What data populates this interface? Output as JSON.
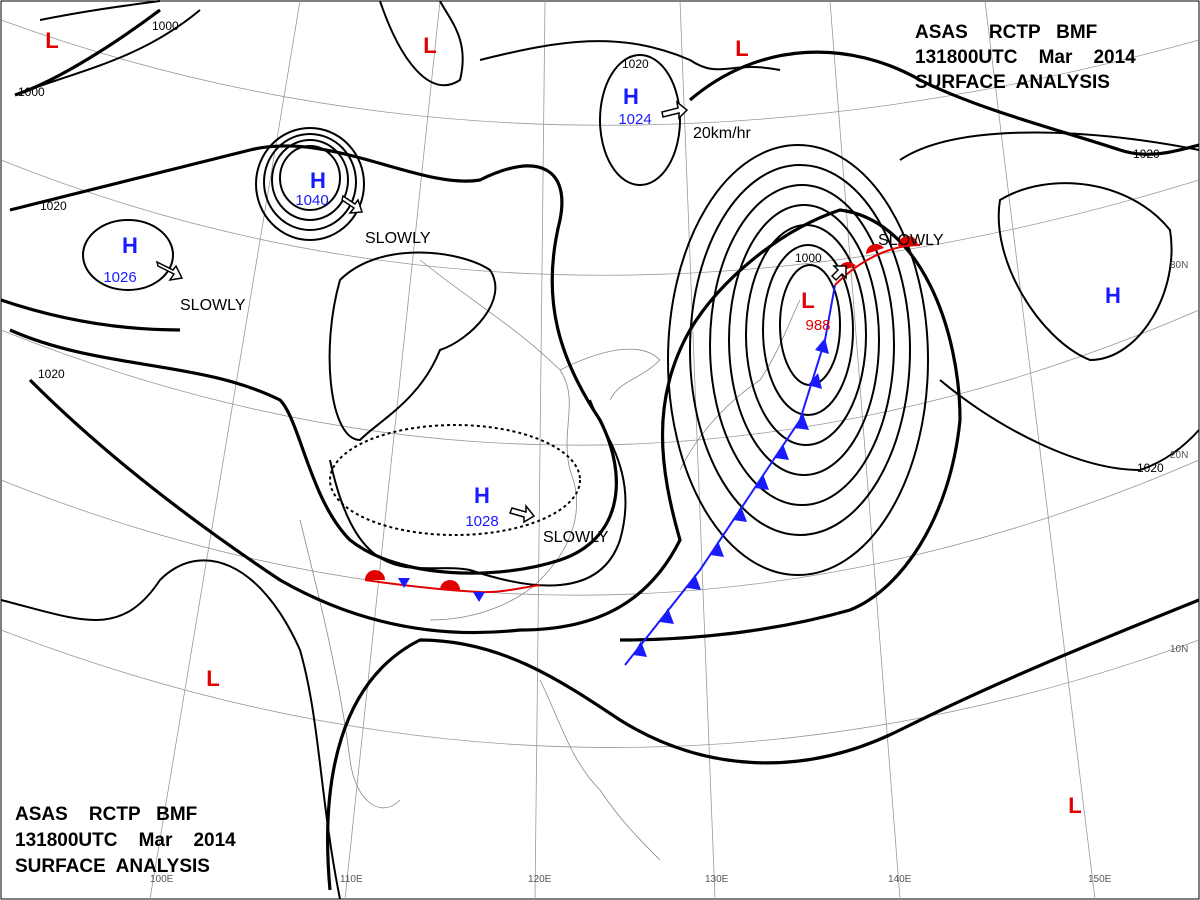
{
  "header": {
    "line1": "ASAS    RCTP   BMF",
    "line2": "131800UTC    Mar    2014",
    "line3": "SURFACE  ANALYSIS"
  },
  "centers": [
    {
      "type": "H",
      "value": 1026
    },
    {
      "type": "H",
      "value": 1040
    },
    {
      "type": "H",
      "value": 1024
    },
    {
      "type": "H",
      "value": 1028
    },
    {
      "type": "H"
    },
    {
      "type": "L",
      "value": 988
    },
    {
      "type": "L"
    },
    {
      "type": "L"
    },
    {
      "type": "L"
    },
    {
      "type": "L"
    },
    {
      "type": "L"
    }
  ],
  "isobar_labels": [
    1000,
    1000,
    1020,
    1020,
    1020,
    1020,
    1020,
    1000
  ],
  "motion_labels": [
    "SLOWLY",
    "SLOWLY",
    "SLOWLY",
    "20km/hr",
    "SLOWLY"
  ],
  "longitude_labels": [
    "100E",
    "110E",
    "120E",
    "130E",
    "140E",
    "150E"
  ],
  "latitude_labels": [
    "30N",
    "20N",
    "10N"
  ]
}
